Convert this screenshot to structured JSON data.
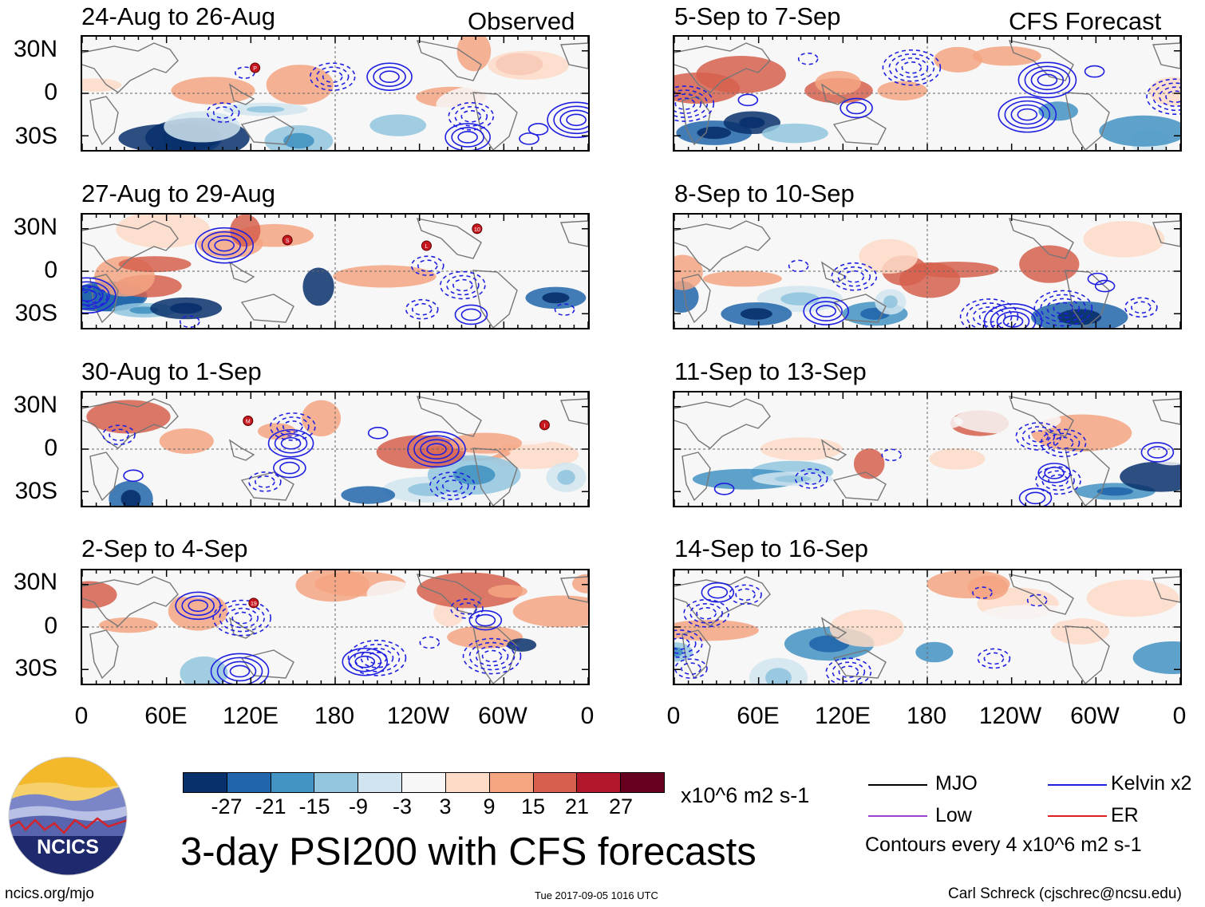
{
  "left_column_label": "Observed",
  "right_column_label": "CFS Forecast",
  "observed_panels": [
    {
      "title": "24-Aug to 26-Aug",
      "storms": [
        {
          "label": "P",
          "lon": 123,
          "lat": 18
        }
      ]
    },
    {
      "title": "27-Aug to 29-Aug",
      "storms": [
        {
          "label": "S",
          "lon": 146,
          "lat": 22
        },
        {
          "label": "L",
          "lon": 245,
          "lat": 18
        },
        {
          "label": "10",
          "lon": 281,
          "lat": 30
        }
      ]
    },
    {
      "title": "30-Aug to 1-Sep",
      "storms": [
        {
          "label": "M",
          "lon": 118,
          "lat": 20
        },
        {
          "label": "I",
          "lon": 329,
          "lat": 17
        }
      ]
    },
    {
      "title": "2-Sep to 4-Sep",
      "storms": [
        {
          "label": "19",
          "lon": 122,
          "lat": 17
        }
      ]
    }
  ],
  "forecast_panels": [
    {
      "title": "5-Sep to 7-Sep"
    },
    {
      "title": "8-Sep to 10-Sep"
    },
    {
      "title": "11-Sep to 13-Sep"
    },
    {
      "title": "14-Sep to 16-Sep"
    }
  ],
  "lat_ticks": [
    "30N",
    "0",
    "30S"
  ],
  "lon_ticks": [
    "0",
    "60E",
    "120E",
    "180",
    "120W",
    "60W",
    "0"
  ],
  "colorbar": {
    "colors": [
      "#08306b",
      "#2166ac",
      "#4393c3",
      "#92c5de",
      "#d1e5f0",
      "#f7f7f7",
      "#fddbc7",
      "#f4a582",
      "#d6604d",
      "#b2182b",
      "#67001f"
    ],
    "labels": [
      "-27",
      "-21",
      "-15",
      "-9",
      "-3",
      "3",
      "9",
      "15",
      "21",
      "27"
    ],
    "units": "x10^6 m2 s-1"
  },
  "legend": {
    "items": [
      {
        "label": "MJO",
        "color": "#000000"
      },
      {
        "label": "Kelvin x2",
        "color": "#1f1fe0"
      },
      {
        "label": "Low",
        "color": "#a040d0"
      },
      {
        "label": "ER",
        "color": "#e02020"
      }
    ],
    "contour_note": "Contours every 4 x10^6 m2 s-1"
  },
  "main_title": "3-day PSI200 with CFS forecasts",
  "logo_text": "NCICS",
  "footer": {
    "url": "ncics.org/mjo",
    "timestamp": "Tue 2017-09-05 1016 UTC",
    "author": "Carl Schreck (cjschrec@ncsu.edu)"
  }
}
